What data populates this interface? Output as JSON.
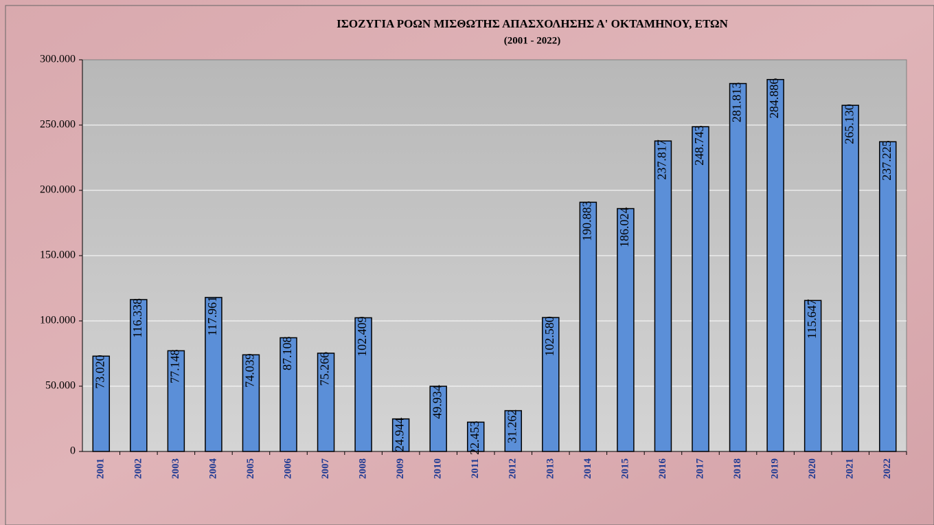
{
  "chart_data": {
    "type": "bar",
    "title": "ΙΣΟΖΥΓΙΑ ΡΟΩΝ ΜΙΣΘΩΤΗΣ ΑΠΑΣΧΟΛΗΣΗΣ Α' ΟΚΤΑΜΗΝΟΥ, ΕΤΩΝ",
    "subtitle": "(2001 - 2022)",
    "categories": [
      "2001",
      "2002",
      "2003",
      "2004",
      "2005",
      "2006",
      "2007",
      "2008",
      "2009",
      "2010",
      "2011",
      "2012",
      "2013",
      "2014",
      "2015",
      "2016",
      "2017",
      "2018",
      "2019",
      "2020",
      "2021",
      "2022"
    ],
    "values": [
      73020,
      116338,
      77148,
      117961,
      74039,
      87108,
      75266,
      102409,
      24944,
      49934,
      22453,
      31262,
      102580,
      190883,
      186024,
      237817,
      248743,
      281813,
      284886,
      115647,
      265130,
      237225
    ],
    "value_labels": [
      "73.020",
      "116.338",
      "77.148",
      "117.961",
      "74.039",
      "87.108",
      "75.266",
      "102.409",
      "24.944",
      "49.934",
      "22.453",
      "31.262",
      "102.580",
      "190.883",
      "186.024",
      "237.817",
      "248.743",
      "281.813",
      "284.886",
      "115.647",
      "265.130",
      "237.225"
    ],
    "color": "#5b8fd8",
    "ylim": [
      0,
      300000
    ],
    "yticks": [
      0,
      {
        "value": 50000,
        "label": "50.000"
      },
      {
        "value": 100000,
        "label": "100.000"
      },
      {
        "value": 150000,
        "label": "150.000"
      },
      {
        "value": 200000,
        "label": "200.000"
      },
      {
        "value": 250000,
        "label": "250.000"
      },
      {
        "value": 300000,
        "label": "300.000"
      }
    ],
    "grid": true
  }
}
